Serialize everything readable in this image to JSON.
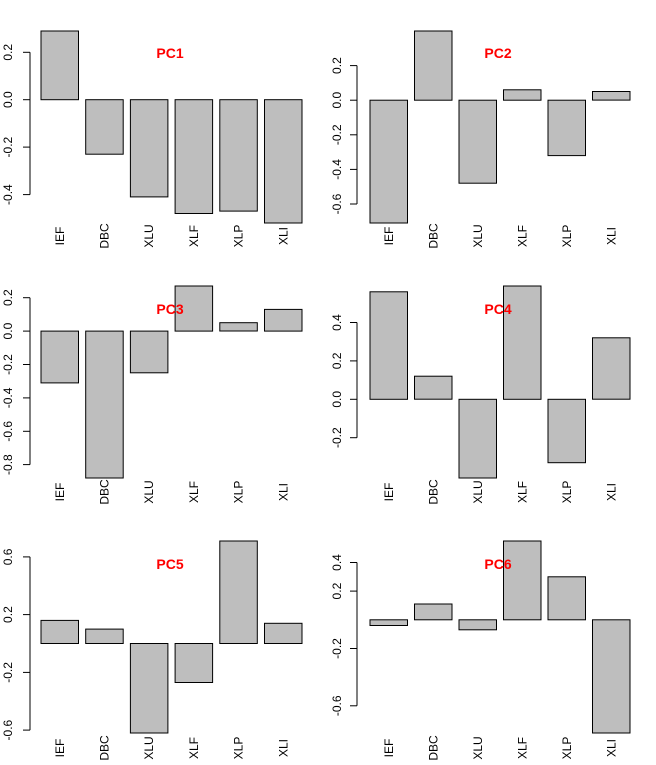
{
  "bar_fill": "#bebebe",
  "bar_stroke": "#000000",
  "title_color": "#ff0000",
  "chart_data": [
    {
      "type": "bar",
      "title": "PC1",
      "categories": [
        "IEF",
        "DBC",
        "XLU",
        "XLF",
        "XLP",
        "XLI"
      ],
      "values": [
        0.29,
        -0.23,
        -0.41,
        -0.48,
        -0.47,
        -0.52
      ],
      "ylim": [
        -0.52,
        0.29
      ],
      "yticks": [
        0.2,
        0.0,
        -0.2,
        -0.4
      ],
      "ytick_labels": [
        "0.2",
        "0.0",
        "-0.2",
        "-0.4"
      ],
      "xlabel": "",
      "ylabel": "",
      "grid": false,
      "legend": "none"
    },
    {
      "type": "bar",
      "title": "PC2",
      "categories": [
        "IEF",
        "DBC",
        "XLU",
        "XLF",
        "XLP",
        "XLI"
      ],
      "values": [
        -0.71,
        0.4,
        -0.48,
        0.06,
        -0.32,
        0.05
      ],
      "ylim": [
        -0.71,
        0.4
      ],
      "yticks": [
        0.2,
        0.0,
        -0.2,
        -0.4,
        -0.6
      ],
      "ytick_labels": [
        "0.2",
        "0.0",
        "-0.2",
        "-0.4",
        "-0.6"
      ],
      "xlabel": "",
      "ylabel": "",
      "grid": false,
      "legend": "none"
    },
    {
      "type": "bar",
      "title": "PC3",
      "categories": [
        "IEF",
        "DBC",
        "XLU",
        "XLF",
        "XLP",
        "XLI"
      ],
      "values": [
        -0.31,
        -0.88,
        -0.25,
        0.27,
        0.05,
        0.13
      ],
      "ylim": [
        -0.88,
        0.27
      ],
      "yticks": [
        0.2,
        0.0,
        -0.2,
        -0.4,
        -0.6,
        -0.8
      ],
      "ytick_labels": [
        "0.2",
        "0.0",
        "-0.2",
        "-0.4",
        "-0.6",
        "-0.8"
      ],
      "xlabel": "",
      "ylabel": "",
      "grid": false,
      "legend": "none"
    },
    {
      "type": "bar",
      "title": "PC4",
      "categories": [
        "IEF",
        "DBC",
        "XLU",
        "XLF",
        "XLP",
        "XLI"
      ],
      "values": [
        0.56,
        0.12,
        -0.41,
        0.59,
        -0.33,
        0.32
      ],
      "ylim": [
        -0.41,
        0.59
      ],
      "yticks": [
        0.4,
        0.2,
        0.0,
        -0.2
      ],
      "ytick_labels": [
        "0.4",
        "0.2",
        "0.0",
        "-0.2"
      ],
      "xlabel": "",
      "ylabel": "",
      "grid": false,
      "legend": "none"
    },
    {
      "type": "bar",
      "title": "PC5",
      "categories": [
        "IEF",
        "DBC",
        "XLU",
        "XLF",
        "XLP",
        "XLI"
      ],
      "values": [
        0.16,
        0.1,
        -0.62,
        -0.27,
        0.71,
        0.14
      ],
      "ylim": [
        -0.62,
        0.71
      ],
      "yticks": [
        0.6,
        0.2,
        -0.2,
        -0.6
      ],
      "ytick_labels": [
        "0.6",
        "0.2",
        "-0.2",
        "-0.6"
      ],
      "xlabel": "",
      "ylabel": "",
      "grid": false,
      "legend": "none"
    },
    {
      "type": "bar",
      "title": "PC6",
      "categories": [
        "IEF",
        "DBC",
        "XLU",
        "XLF",
        "XLP",
        "XLI"
      ],
      "values": [
        -0.04,
        0.11,
        -0.07,
        0.55,
        0.3,
        -0.79
      ],
      "ylim": [
        -0.79,
        0.55
      ],
      "yticks": [
        0.4,
        0.2,
        -0.2,
        -0.6
      ],
      "ytick_labels": [
        "0.4",
        "0.2",
        "-0.2",
        "-0.6"
      ],
      "xlabel": "",
      "ylabel": "",
      "grid": false,
      "legend": "none"
    }
  ]
}
